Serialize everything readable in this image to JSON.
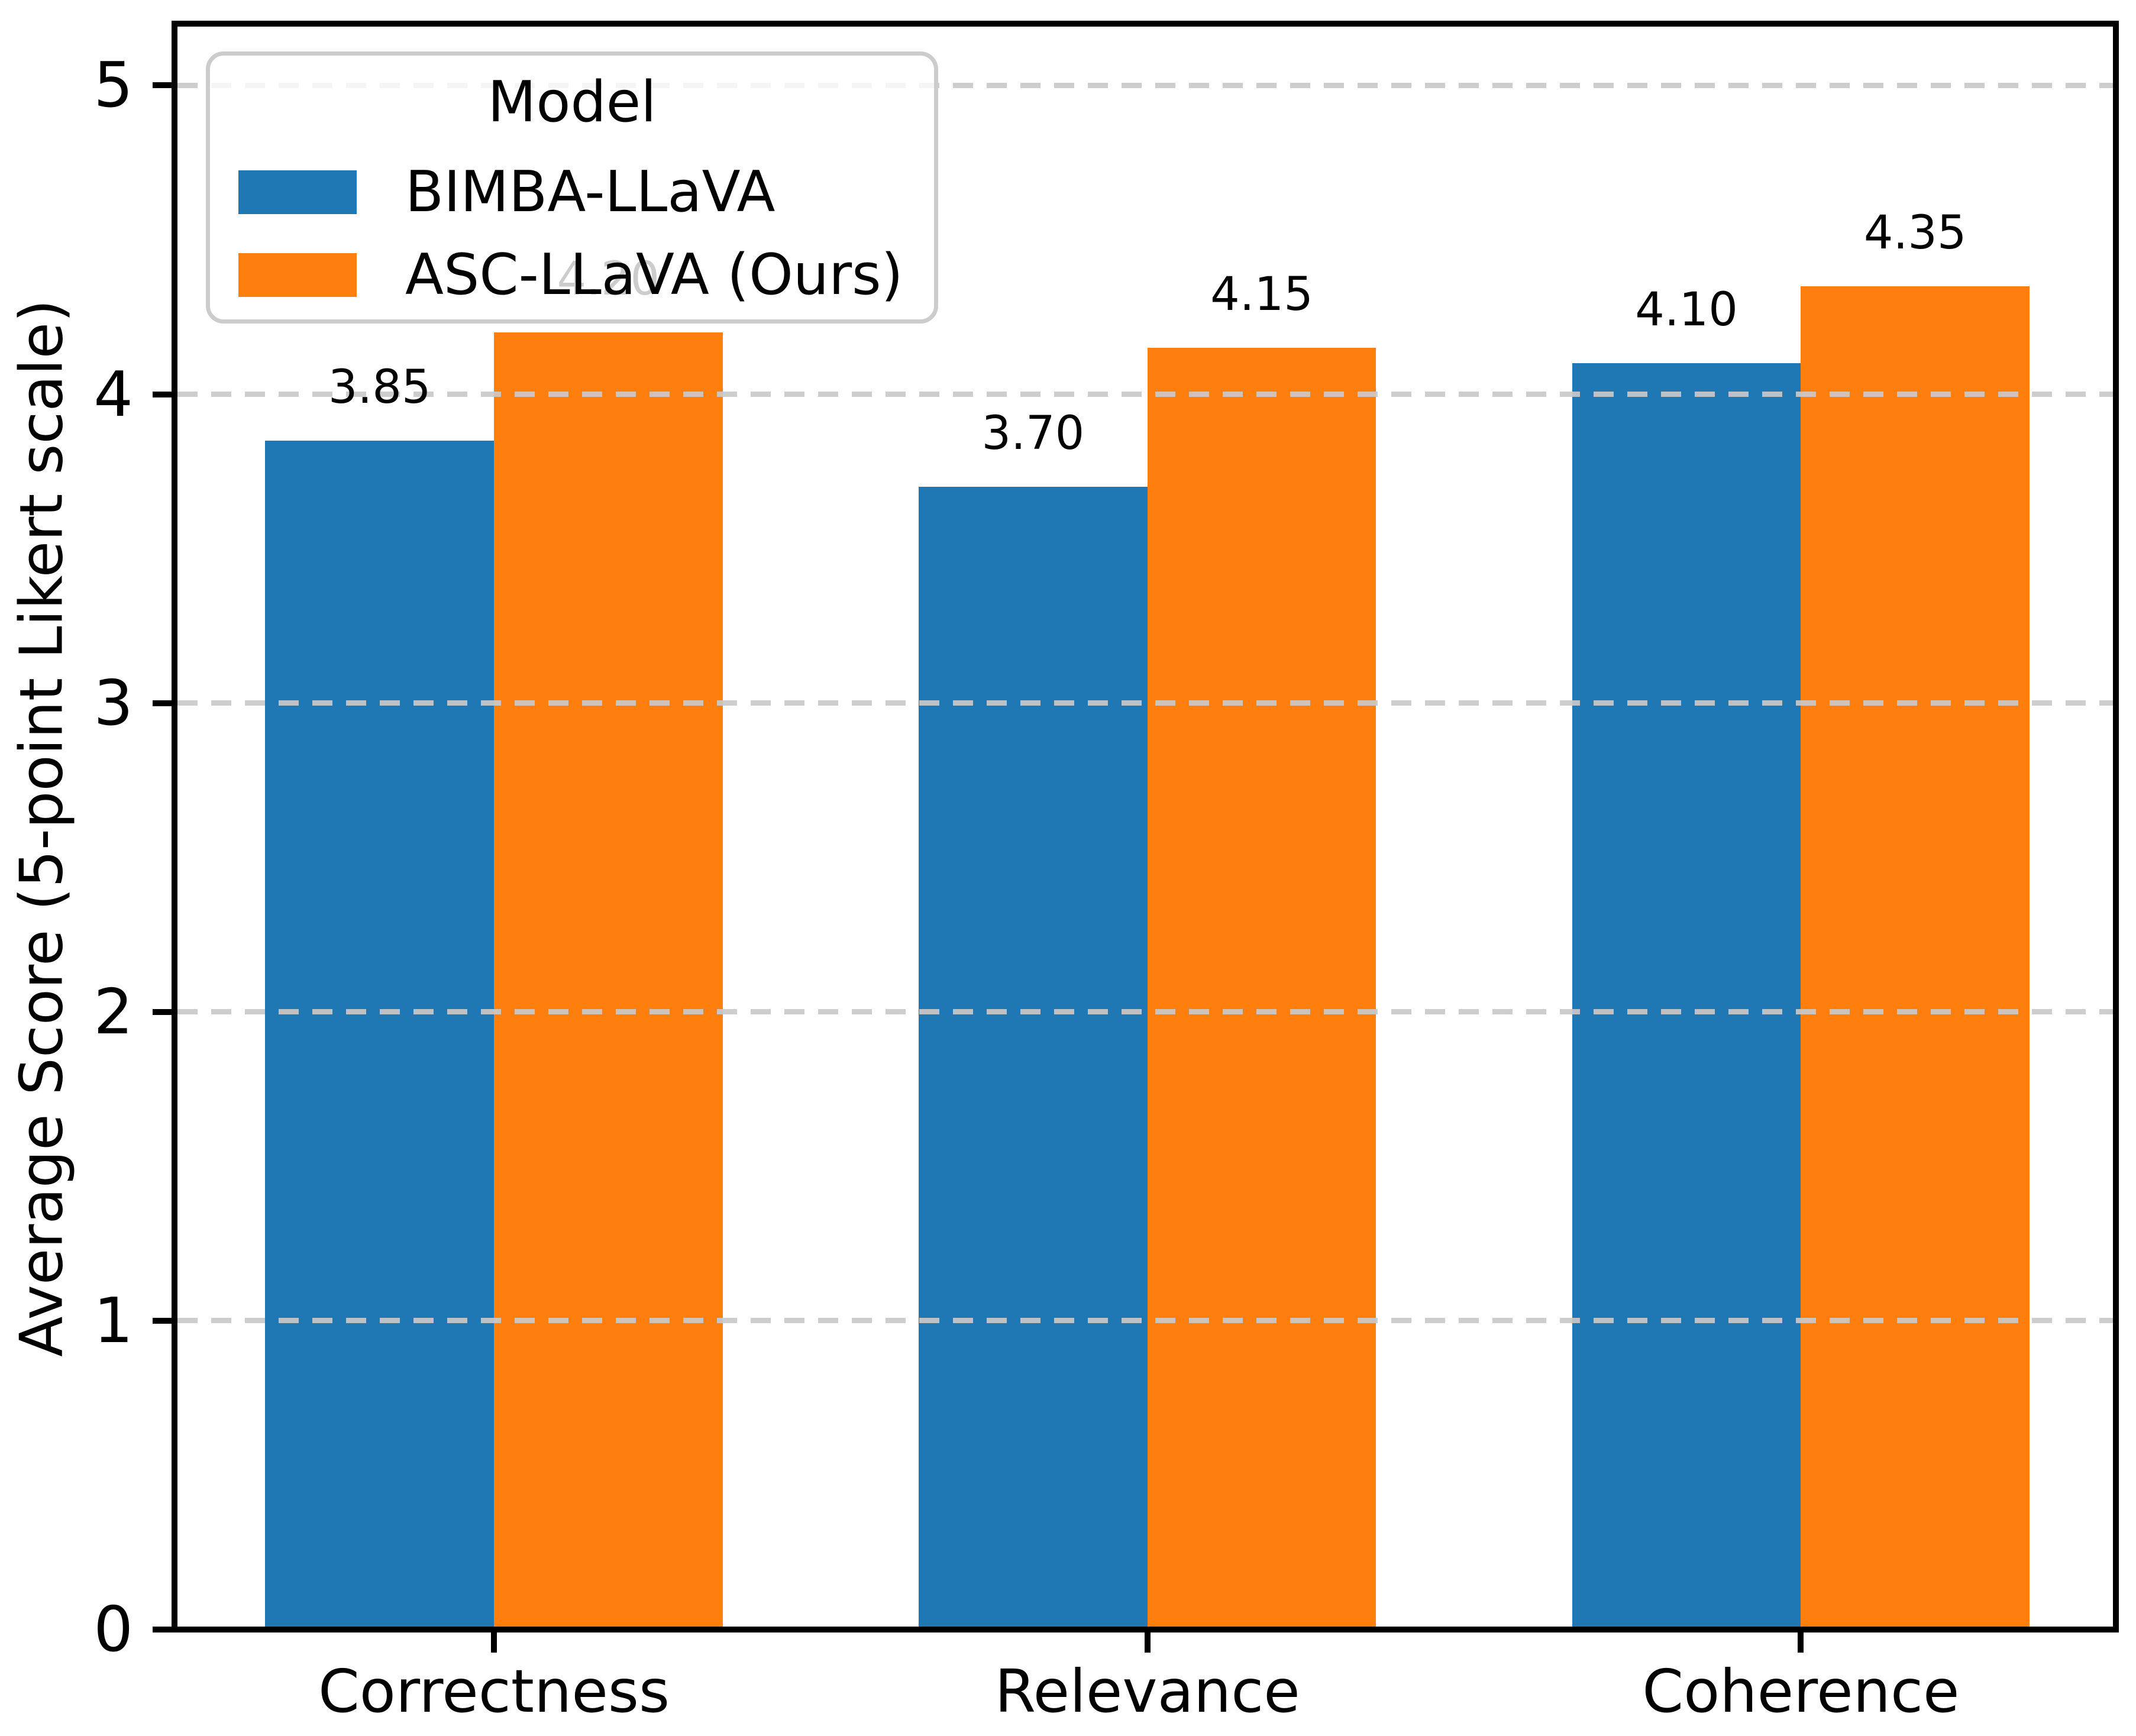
{
  "chart_data": {
    "type": "bar",
    "title": "",
    "categories": [
      "Correctness",
      "Relevance",
      "Coherence"
    ],
    "series": [
      {
        "name": "BIMBA-LLaVA",
        "color": "#1f77b4",
        "values": [
          3.85,
          3.7,
          4.1
        ],
        "labels": [
          "3.85",
          "3.70",
          "4.10"
        ]
      },
      {
        "name": "ASC-LLaVA (Ours)",
        "color": "#ff7f0e",
        "values": [
          4.2,
          4.15,
          4.35
        ],
        "labels": [
          "4.20",
          "4.15",
          "4.35"
        ]
      }
    ],
    "xlabel": "",
    "ylabel": "Average Score (5-point Likert scale)",
    "ylim": [
      0,
      5.2
    ],
    "yticks": [
      0,
      1,
      2,
      3,
      4,
      5
    ],
    "ytick_labels": [
      "0",
      "1",
      "2",
      "3",
      "4",
      "5"
    ],
    "bar_width": 0.35,
    "grid": {
      "axis": "y",
      "style": "dashed",
      "color": "#c9c9c9",
      "above_bars": true
    },
    "legend": {
      "title": "Model",
      "position": "upper left",
      "border_color": "#cccccc"
    },
    "axis_color": "#000000",
    "background_color": "#ffffff"
  }
}
